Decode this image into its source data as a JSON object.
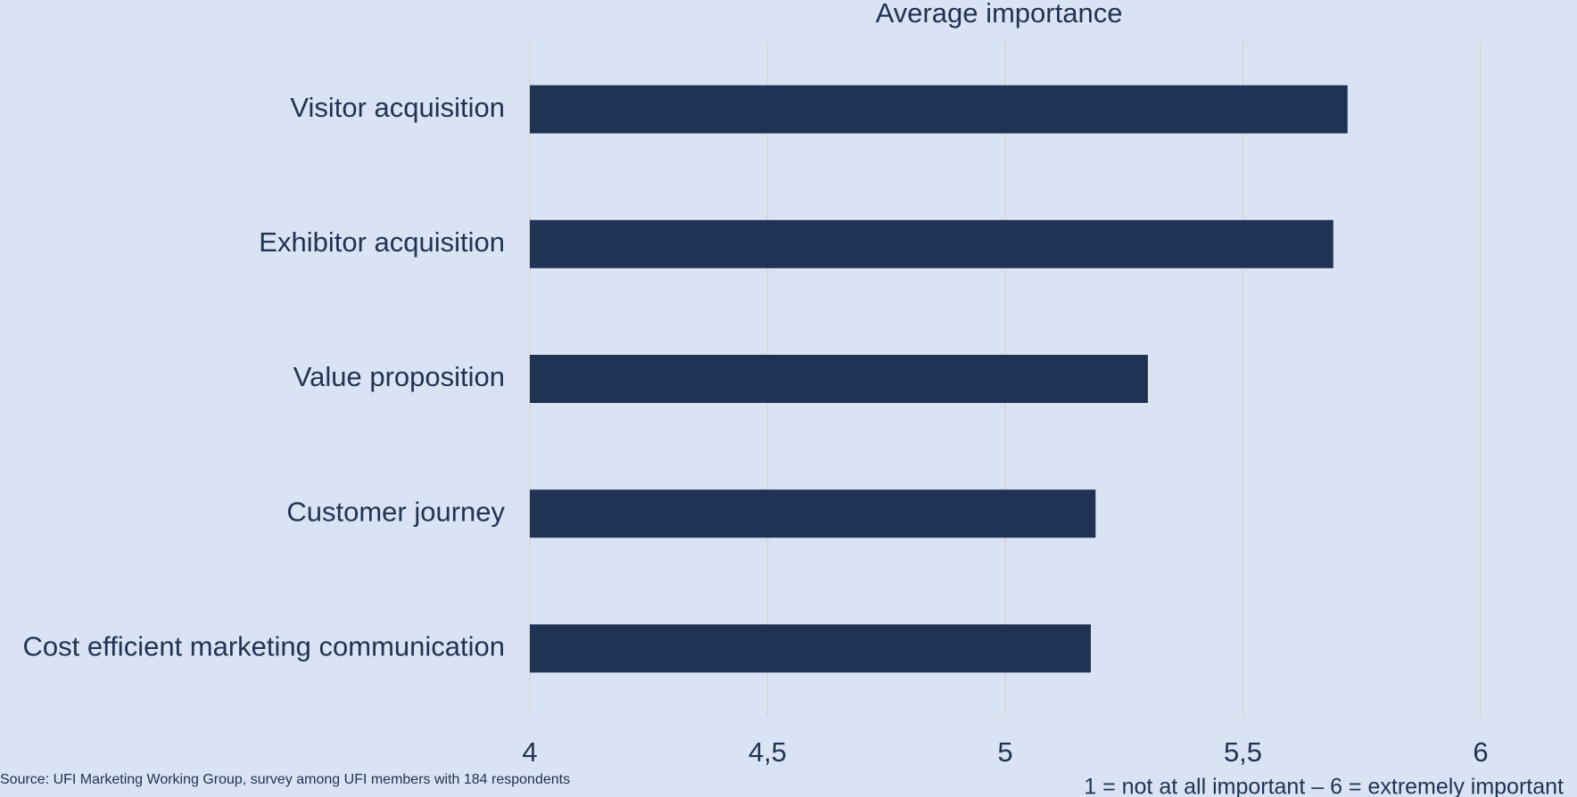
{
  "chart_data": {
    "type": "bar",
    "orientation": "horizontal",
    "x_label": "Average importance",
    "categories": [
      "Visitor acquisition",
      "Exhibitor acquisition",
      "Value proposition",
      "Customer journey",
      "Cost efficient marketing communication"
    ],
    "values": [
      5.72,
      5.69,
      5.3,
      5.19,
      5.18
    ],
    "color": "#203354",
    "xlim": [
      4,
      6
    ],
    "xticks": [
      4,
      {
        "value": 4.5,
        "label": "4,5"
      },
      5,
      {
        "value": 5.5,
        "label": "5,5"
      },
      6
    ],
    "grid": true,
    "source": "Source: UFI Marketing Working Group, survey among UFI members with 184 respondents",
    "note": "1 = not at all important – 6 = extremely important"
  }
}
